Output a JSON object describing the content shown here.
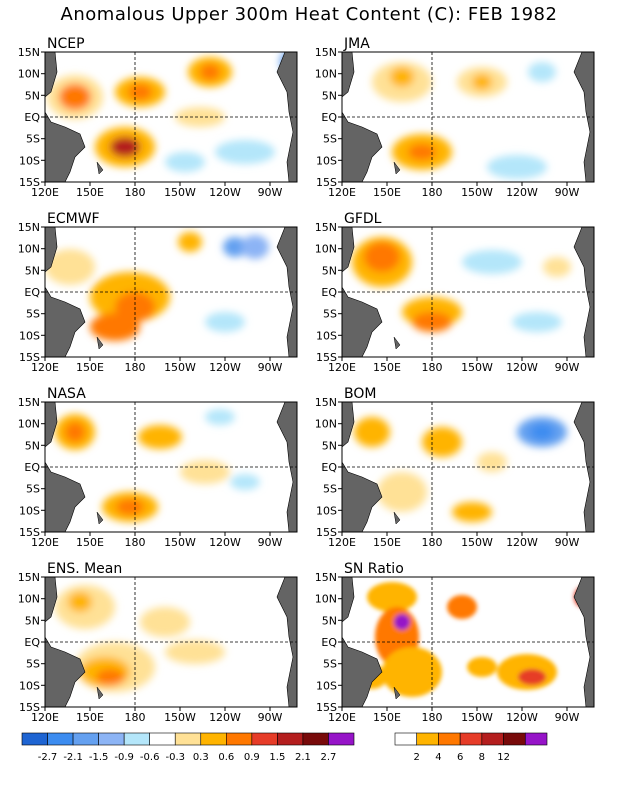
{
  "title": "Anomalous Upper 300m Heat Content (C): FEB 1982",
  "lat_labels": [
    "15N",
    "10N",
    "5N",
    "EQ",
    "5S",
    "10S",
    "15S"
  ],
  "lon_labels": [
    "120E",
    "150E",
    "180",
    "150W",
    "120W",
    "90W"
  ],
  "panels": [
    {
      "name": "NCEP",
      "key": "ncep"
    },
    {
      "name": "JMA",
      "key": "jma"
    },
    {
      "name": "ECMWF",
      "key": "ecmwf"
    },
    {
      "name": "GFDL",
      "key": "gfdl"
    },
    {
      "name": "NASA",
      "key": "nasa"
    },
    {
      "name": "BOM",
      "key": "bom"
    },
    {
      "name": "ENS. Mean",
      "key": "ens"
    },
    {
      "name": "SN Ratio",
      "key": "sn"
    }
  ],
  "anomaly_colorbar": {
    "colors": [
      "#1e64d2",
      "#3c8cf0",
      "#64a0f0",
      "#8cb4f5",
      "#b4e6fa",
      "#ffffff",
      "#ffe196",
      "#ffb400",
      "#ff7800",
      "#e63c28",
      "#b41e1e",
      "#780a0a",
      "#9614c8"
    ],
    "labels": [
      "-2.7",
      "-2.1",
      "-1.5",
      "-0.9",
      "-0.6",
      "-0.3",
      "0.3",
      "0.6",
      "0.9",
      "1.5",
      "2.1",
      "2.7"
    ]
  },
  "sn_colorbar": {
    "colors": [
      "#ffffff",
      "#ffb400",
      "#ff7800",
      "#e63c28",
      "#b41e1e",
      "#780a0a",
      "#9614c8"
    ],
    "labels": [
      "2",
      "4",
      "6",
      "8",
      "12"
    ]
  }
}
